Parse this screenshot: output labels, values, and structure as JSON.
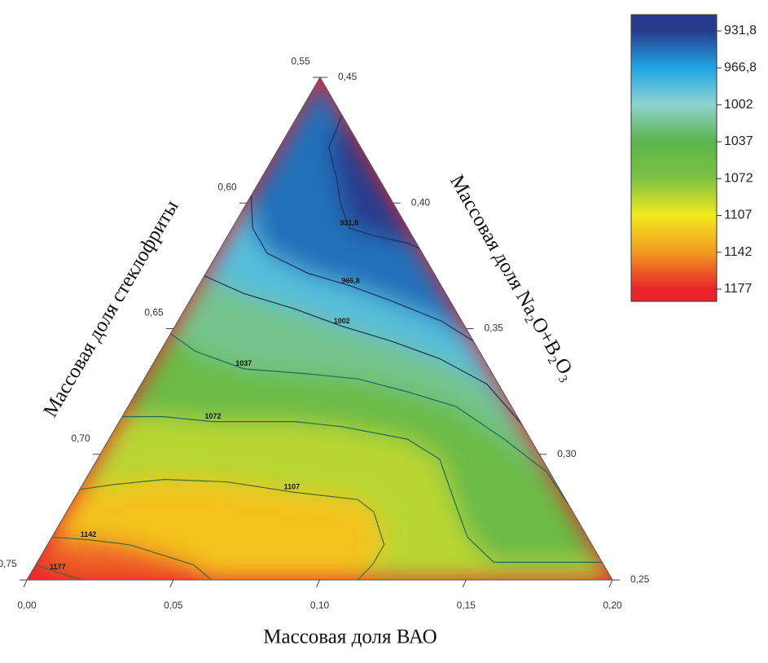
{
  "chart_data": {
    "type": "ternary_contour",
    "axes": {
      "bottom": {
        "title": "Массовая доля ВАО",
        "lim": [
          0,
          0.2
        ],
        "ticks": [
          {
            "value": 0,
            "label": "0,00"
          },
          {
            "value": 0.05,
            "label": "0,05"
          },
          {
            "value": 0.1,
            "label": "0,10"
          },
          {
            "value": 0.15,
            "label": "0,15"
          },
          {
            "value": 0.2,
            "label": "0,20"
          }
        ]
      },
      "left": {
        "title": "Массовая доля стеклофриты",
        "lim": [
          0.75,
          0.55
        ],
        "ticks": [
          {
            "value": 0.55,
            "label": "0,55"
          },
          {
            "value": 0.6,
            "label": "0,60"
          },
          {
            "value": 0.65,
            "label": "0,65"
          },
          {
            "value": 0.7,
            "label": "0,70"
          },
          {
            "value": 0.75,
            "label": "0,75"
          }
        ]
      },
      "right": {
        "title": "Массовая доля Na₂O+B₂O₃",
        "lim": [
          0.25,
          0.45
        ],
        "ticks": [
          {
            "value": 0.25,
            "label": "0,25"
          },
          {
            "value": 0.3,
            "label": "0,30"
          },
          {
            "value": 0.35,
            "label": "0,35"
          },
          {
            "value": 0.4,
            "label": "0,40"
          },
          {
            "value": 0.45,
            "label": "0,45"
          }
        ]
      }
    },
    "colorbar": {
      "ticks": [
        {
          "value": 931.8,
          "label": "931,8"
        },
        {
          "value": 966.8,
          "label": "966,8"
        },
        {
          "value": 1002,
          "label": "1002"
        },
        {
          "value": 1037,
          "label": "1037"
        },
        {
          "value": 1072,
          "label": "1072"
        },
        {
          "value": 1107,
          "label": "1107"
        },
        {
          "value": 1142,
          "label": "1142"
        },
        {
          "value": 1177,
          "label": "1177"
        }
      ],
      "colors": [
        "#283c8e",
        "#1fa6e6",
        "#8fd3d0",
        "#5ab44a",
        "#7ec243",
        "#f2ea1d",
        "#f39a21",
        "#e8232a"
      ]
    },
    "contours": [
      {
        "level": 931.8,
        "label": "931,8",
        "x": [
          0.015,
          0.017,
          0.025,
          0.032,
          0.04,
          0.05,
          0.063,
          0.068
        ],
        "y": [
          0.435,
          0.422,
          0.411,
          0.4,
          0.39,
          0.387,
          0.384,
          0.382
        ]
      },
      {
        "level": 966.8,
        "label": "966,8",
        "x": [
          0,
          0.007,
          0.017,
          0.035,
          0.052,
          0.069,
          0.09,
          0.105
        ],
        "y": [
          0.403,
          0.39,
          0.38,
          0.372,
          0.367,
          0.361,
          0.353,
          0.345
        ]
      },
      {
        "level": 1002,
        "label": "1002",
        "x": [
          0,
          0.017,
          0.037,
          0.057,
          0.077,
          0.097,
          0.118,
          0.138
        ],
        "y": [
          0.371,
          0.364,
          0.358,
          0.351,
          0.345,
          0.338,
          0.328,
          0.312
        ]
      },
      {
        "level": 1037,
        "label": "1037",
        "x": [
          0,
          0.012,
          0.032,
          0.055,
          0.073,
          0.092,
          0.112,
          0.135,
          0.156,
          0.17
        ],
        "y": [
          0.348,
          0.341,
          0.334,
          0.332,
          0.33,
          0.325,
          0.319,
          0.306,
          0.293,
          0.28
        ]
      },
      {
        "level": 1072,
        "label": "1072",
        "x": [
          0,
          0.014,
          0.032,
          0.06,
          0.077,
          0.102,
          0.117,
          0.129,
          0.142,
          0.156,
          0.176,
          0.193
        ],
        "y": [
          0.315,
          0.315,
          0.313,
          0.313,
          0.311,
          0.306,
          0.298,
          0.283,
          0.267,
          0.257,
          0.257,
          0.257
        ]
      },
      {
        "level": 1107,
        "label": "1107",
        "x": [
          0,
          0.011,
          0.027,
          0.049,
          0.073,
          0.097,
          0.105,
          0.115,
          0.115,
          0.113
        ],
        "y": [
          0.286,
          0.288,
          0.29,
          0.289,
          0.285,
          0.282,
          0.277,
          0.264,
          0.256,
          0.25
        ]
      },
      {
        "level": 1142,
        "label": "1142",
        "x": [
          0,
          0.013,
          0.028,
          0.041,
          0.054,
          0.063
        ],
        "y": [
          0.267,
          0.266,
          0.264,
          0.26,
          0.256,
          0.25
        ]
      },
      {
        "level": 1177,
        "label": "1177",
        "x": [
          0,
          0.009,
          0.019
        ],
        "y": [
          0.256,
          0.253,
          0.25
        ]
      }
    ]
  }
}
